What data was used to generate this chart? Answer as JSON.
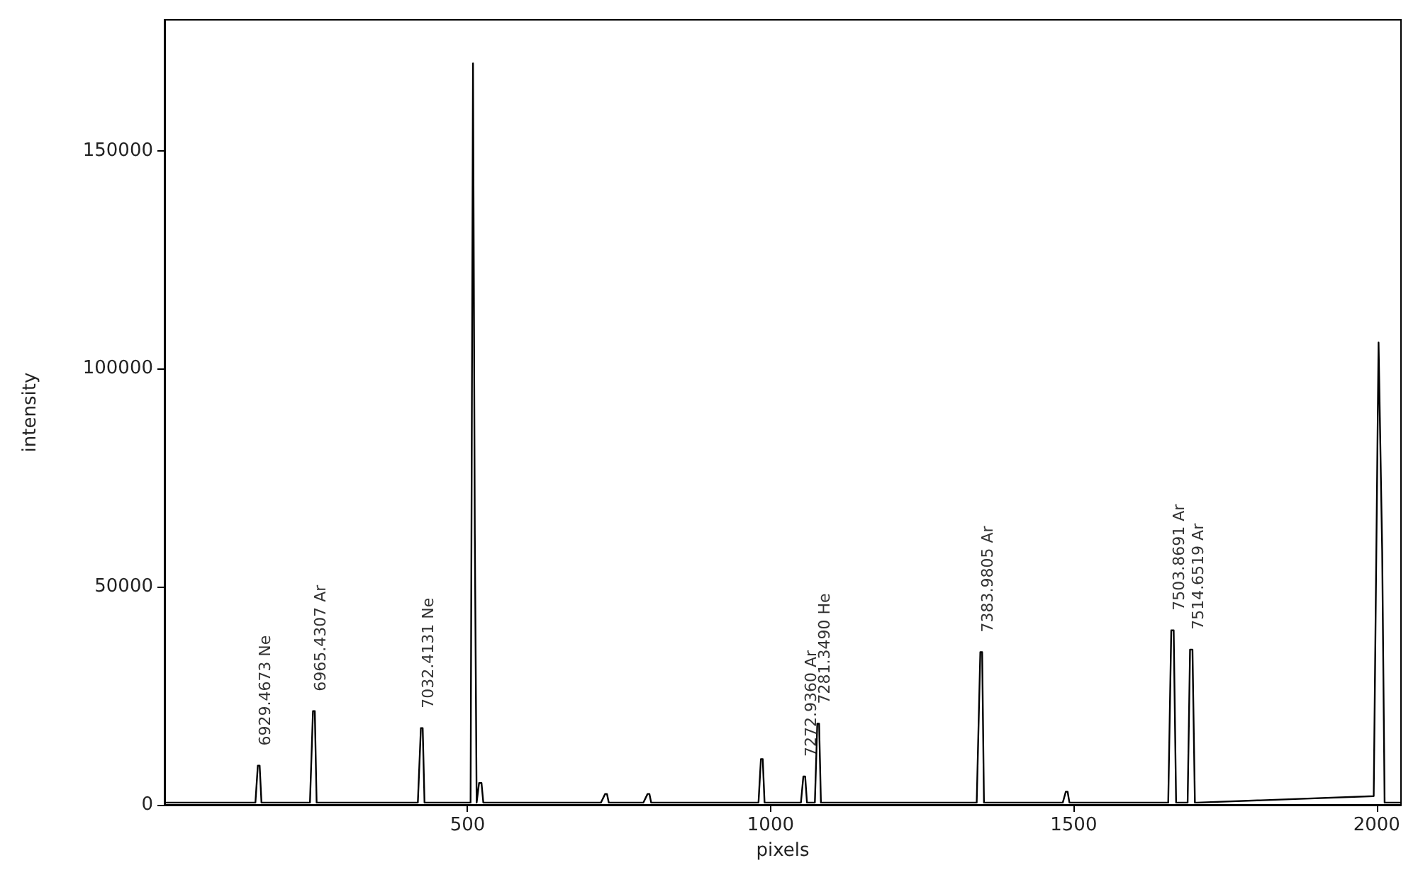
{
  "chart_data": {
    "type": "line",
    "xlabel": "pixels",
    "ylabel": "intensity",
    "xlim": [
      0,
      2040
    ],
    "ylim": [
      0,
      180000
    ],
    "xticks": [
      500,
      1000,
      1500,
      2000
    ],
    "yticks": [
      0,
      50000,
      100000,
      150000
    ],
    "grid": false,
    "marker": "none",
    "line_style": "solid",
    "series": [
      {
        "color": "#000000",
        "x": [
          0,
          150,
          154,
          157,
          160,
          164,
          240,
          245,
          248,
          251,
          256,
          418,
          423,
          426,
          429,
          434,
          505,
          509,
          512,
          515,
          519,
          523,
          526,
          530,
          720,
          727,
          730,
          733,
          740,
          790,
          797,
          800,
          803,
          810,
          980,
          984,
          987,
          990,
          994,
          1050,
          1054,
          1057,
          1060,
          1064,
          1073,
          1077,
          1080,
          1083,
          1087,
          1340,
          1346,
          1349,
          1352,
          1358,
          1482,
          1487,
          1490,
          1493,
          1498,
          1656,
          1661,
          1665,
          1669,
          1674,
          1688,
          1692,
          1696,
          1700,
          1704,
          1995,
          2003,
          2009,
          2013,
          2020,
          2040
        ],
        "values": [
          500,
          500,
          9000,
          9000,
          500,
          500,
          500,
          21500,
          21500,
          500,
          500,
          500,
          17600,
          17600,
          500,
          500,
          500,
          170000,
          62000,
          500,
          5000,
          5000,
          500,
          500,
          500,
          2500,
          2500,
          500,
          500,
          500,
          2500,
          2500,
          500,
          500,
          500,
          10500,
          10500,
          500,
          500,
          500,
          6500,
          6500,
          500,
          500,
          500,
          18600,
          18600,
          500,
          500,
          500,
          35000,
          35000,
          500,
          500,
          500,
          3000,
          3000,
          500,
          500,
          500,
          40000,
          40000,
          500,
          500,
          500,
          35600,
          35600,
          500,
          500,
          2000,
          106000,
          58000,
          500,
          500,
          500
        ]
      }
    ],
    "annotations": [
      {
        "text": "6929.4673 Ne",
        "x": 157,
        "y": 9000
      },
      {
        "text": "6965.4307 Ar",
        "x": 248,
        "y": 21500
      },
      {
        "text": "7032.4131 Ne",
        "x": 426,
        "y": 17600
      },
      {
        "text": "7272.9360 Ar",
        "x": 1057,
        "y": 6500
      },
      {
        "text": "7281.3490 He",
        "x": 1080,
        "y": 18600
      },
      {
        "text": "7383.9805 Ar",
        "x": 1349,
        "y": 35000
      },
      {
        "text": "7503.8691 Ar",
        "x": 1665,
        "y": 40000
      },
      {
        "text": "7514.6519 Ar",
        "x": 1696,
        "y": 35600
      }
    ]
  }
}
